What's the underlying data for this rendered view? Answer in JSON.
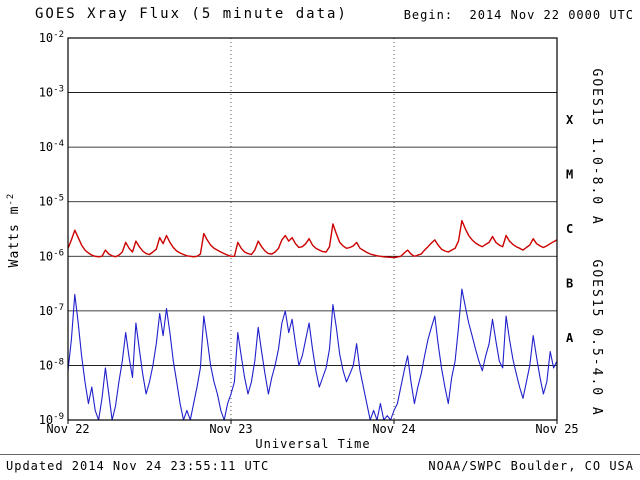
{
  "header": {
    "title": "GOES Xray Flux (5 minute data)",
    "begin_label": "Begin:  2014 Nov 22 0000 UTC"
  },
  "footer": {
    "updated": "Updated 2014 Nov 24 23:55:11 UTC",
    "credit": "NOAA/SWPC Boulder, CO USA"
  },
  "colors": {
    "long_channel_red": "#cc0000",
    "short_channel_blue": "#2020cc",
    "axis": "#000000",
    "background": "#ffffff"
  },
  "chart_data": {
    "type": "line",
    "title": "GOES Xray Flux (5 minute data)",
    "begin": "2014 Nov 22 0000 UTC",
    "updated": "2014 Nov 24 23:55:11 UTC",
    "xlabel": "Universal Time",
    "ylabel": "Watts m-2",
    "ylabel_base": "Watts m",
    "ylabel_exp": "-2",
    "y_scale": "log",
    "ylim": [
      1e-09,
      0.01
    ],
    "y_tick_exponents": [
      -2,
      -3,
      -4,
      -5,
      -6,
      -7,
      -8,
      -9
    ],
    "grid_horizontal_exponents": [
      -3,
      -4,
      -5,
      -6,
      -7,
      -8
    ],
    "grid_vertical_hours": [
      24,
      48
    ],
    "x_range_hours": [
      0,
      72
    ],
    "x_step_hours": 0.5,
    "x_tick_hours": [
      0,
      24,
      48,
      72
    ],
    "x_tick_labels": [
      "Nov 22",
      "Nov 23",
      "Nov 24",
      "Nov 25"
    ],
    "flare_classes": [
      {
        "label": "X",
        "center_exp": -3.5
      },
      {
        "label": "M",
        "center_exp": -4.5
      },
      {
        "label": "C",
        "center_exp": -5.5
      },
      {
        "label": "B",
        "center_exp": -6.5
      },
      {
        "label": "A",
        "center_exp": -7.5
      }
    ],
    "series": [
      {
        "name": "GOES15 1.0-8.0 A",
        "color": "#cc0000",
        "label_center_exp": -4.0,
        "values": [
          1.4e-06,
          2e-06,
          3e-06,
          2.2e-06,
          1.6e-06,
          1.3e-06,
          1.15e-06,
          1.05e-06,
          1e-06,
          9.8e-07,
          1e-06,
          1.3e-06,
          1.1e-06,
          1.02e-06,
          9.8e-07,
          1.05e-06,
          1.2e-06,
          1.8e-06,
          1.4e-06,
          1.2e-06,
          1.9e-06,
          1.5e-06,
          1.25e-06,
          1.12e-06,
          1.08e-06,
          1.2e-06,
          1.35e-06,
          2.2e-06,
          1.7e-06,
          2.4e-06,
          1.8e-06,
          1.45e-06,
          1.25e-06,
          1.15e-06,
          1.08e-06,
          1.02e-06,
          1e-06,
          9.8e-07,
          1e-06,
          1.1e-06,
          2.6e-06,
          2e-06,
          1.6e-06,
          1.4e-06,
          1.3e-06,
          1.2e-06,
          1.12e-06,
          1.05e-06,
          1e-06,
          1e-06,
          1.8e-06,
          1.4e-06,
          1.2e-06,
          1.12e-06,
          1.08e-06,
          1.3e-06,
          1.9e-06,
          1.5e-06,
          1.25e-06,
          1.12e-06,
          1.1e-06,
          1.2e-06,
          1.4e-06,
          2e-06,
          2.4e-06,
          1.9e-06,
          2.2e-06,
          1.7e-06,
          1.45e-06,
          1.5e-06,
          1.7e-06,
          2.1e-06,
          1.6e-06,
          1.4e-06,
          1.3e-06,
          1.22e-06,
          1.2e-06,
          1.5e-06,
          3.9e-06,
          2.6e-06,
          1.8e-06,
          1.55e-06,
          1.4e-06,
          1.45e-06,
          1.55e-06,
          1.8e-06,
          1.4e-06,
          1.28e-06,
          1.18e-06,
          1.1e-06,
          1.06e-06,
          1.02e-06,
          1e-06,
          9.8e-07,
          9.7e-07,
          9.6e-07,
          9.5e-07,
          9.7e-07,
          1e-06,
          1.15e-06,
          1.3e-06,
          1.1e-06,
          1e-06,
          1.05e-06,
          1.1e-06,
          1.3e-06,
          1.5e-06,
          1.75e-06,
          2e-06,
          1.6e-06,
          1.35e-06,
          1.25e-06,
          1.2e-06,
          1.3e-06,
          1.4e-06,
          1.9e-06,
          4.5e-06,
          3.2e-06,
          2.4e-06,
          2e-06,
          1.75e-06,
          1.6e-06,
          1.5e-06,
          1.65e-06,
          1.8e-06,
          2.3e-06,
          1.8e-06,
          1.6e-06,
          1.5e-06,
          2.4e-06,
          1.9e-06,
          1.65e-06,
          1.5e-06,
          1.4e-06,
          1.3e-06,
          1.45e-06,
          1.6e-06,
          2.1e-06,
          1.7e-06,
          1.55e-06,
          1.45e-06,
          1.55e-06,
          1.7e-06,
          1.85e-06,
          2e-06
        ]
      },
      {
        "name": "GOES15 0.5-4.0 A",
        "color": "#2020cc",
        "label_center_exp": -7.5,
        "values": [
          8e-09,
          3e-08,
          2e-07,
          6e-08,
          1.5e-08,
          5e-09,
          2e-09,
          4e-09,
          1.5e-09,
          1e-09,
          2.5e-09,
          9e-09,
          3e-09,
          1e-09,
          1.8e-09,
          5e-09,
          1.2e-08,
          4e-08,
          1.4e-08,
          6e-09,
          6e-08,
          2e-08,
          7e-09,
          3e-09,
          5e-09,
          1e-08,
          2.5e-08,
          9e-08,
          3.5e-08,
          1.1e-07,
          4e-08,
          1.2e-08,
          5e-09,
          2e-09,
          1e-09,
          1.5e-09,
          1e-09,
          2e-09,
          4e-09,
          9e-09,
          8e-08,
          3e-08,
          1e-08,
          5e-09,
          3e-09,
          1.5e-09,
          1e-09,
          2e-09,
          3e-09,
          5e-09,
          4e-08,
          1.5e-08,
          6e-09,
          3e-09,
          5e-09,
          1.2e-08,
          5e-08,
          1.8e-08,
          7e-09,
          3e-09,
          6e-09,
          1e-08,
          2e-08,
          6e-08,
          1e-07,
          4e-08,
          7e-08,
          2.5e-08,
          1e-08,
          1.5e-08,
          3e-08,
          6e-08,
          2e-08,
          8e-09,
          4e-09,
          6e-09,
          9e-09,
          2e-08,
          1.3e-07,
          5e-08,
          1.6e-08,
          8e-09,
          5e-09,
          7e-09,
          1e-08,
          2.5e-08,
          8e-09,
          4e-09,
          2e-09,
          1e-09,
          1.5e-09,
          1e-09,
          2e-09,
          1e-09,
          1.2e-09,
          1e-09,
          1.5e-09,
          2e-09,
          4e-09,
          8e-09,
          1.5e-08,
          5e-09,
          2e-09,
          4e-09,
          7e-09,
          1.5e-08,
          3e-08,
          5e-08,
          8e-08,
          2.5e-08,
          9e-09,
          4e-09,
          2e-09,
          6e-09,
          1.2e-08,
          5e-08,
          2.5e-07,
          1.2e-07,
          6e-08,
          3.5e-08,
          2e-08,
          1.2e-08,
          8e-09,
          1.5e-08,
          2.5e-08,
          7e-08,
          2.8e-08,
          1.2e-08,
          9e-09,
          8e-08,
          3e-08,
          1.3e-08,
          7e-09,
          4e-09,
          2.5e-09,
          5e-09,
          1e-08,
          3.5e-08,
          1.4e-08,
          6e-09,
          3e-09,
          5e-09,
          1.8e-08,
          9e-09,
          1.2e-08
        ]
      }
    ]
  }
}
